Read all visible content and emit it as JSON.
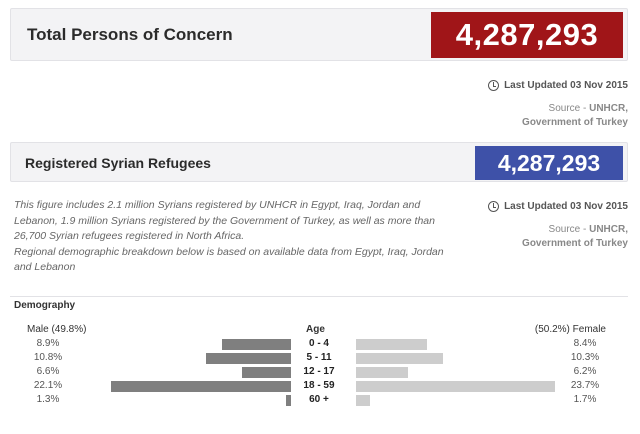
{
  "total": {
    "label": "Total Persons of Concern",
    "value": "4,287,293",
    "value_color": "#a01518"
  },
  "meta1": {
    "updated": "Last Updated 03 Nov 2015",
    "source_prefix": "Source - ",
    "source_name": "UNHCR, Government of Turkey"
  },
  "syrian": {
    "label": "Registered Syrian Refugees",
    "value": "4,287,293",
    "value_color": "#3e51a8"
  },
  "description": {
    "line1": "This figure includes 2.1 million Syrians registered by UNHCR in Egypt, Iraq, Jordan and Lebanon, 1.9 million Syrians registered by the Government of Turkey, as well as more than 26,700 Syrian refugees registered in North Africa.",
    "line2": "Regional demographic breakdown below is based on available data from Egypt, Iraq, Jordan and Lebanon"
  },
  "meta2": {
    "updated": "Last Updated 03 Nov 2015",
    "source_prefix": "Source - ",
    "source_name": "UNHCR, Government of Turkey"
  },
  "demography": {
    "title": "Demography",
    "male_label": "Male (49.8%)",
    "female_label": "(50.2%) Female",
    "age_label": "Age",
    "rows": [
      {
        "age": "0 - 4",
        "male": "8.9%",
        "female": "8.4%",
        "male_value": 8.9,
        "female_value": 8.4
      },
      {
        "age": "5 - 11",
        "male": "10.8%",
        "female": "10.3%",
        "male_value": 10.8,
        "female_value": 10.3
      },
      {
        "age": "12 - 17",
        "male": "6.6%",
        "female": "6.2%",
        "male_value": 6.6,
        "female_value": 6.2
      },
      {
        "age": "18 - 59",
        "male": "22.1%",
        "female": "23.7%",
        "male_value": 22.1,
        "female_value": 23.7
      },
      {
        "age": "60 +",
        "male": "1.3%",
        "female": "1.7%",
        "male_value": 1.3,
        "female_value": 1.7
      }
    ]
  }
}
